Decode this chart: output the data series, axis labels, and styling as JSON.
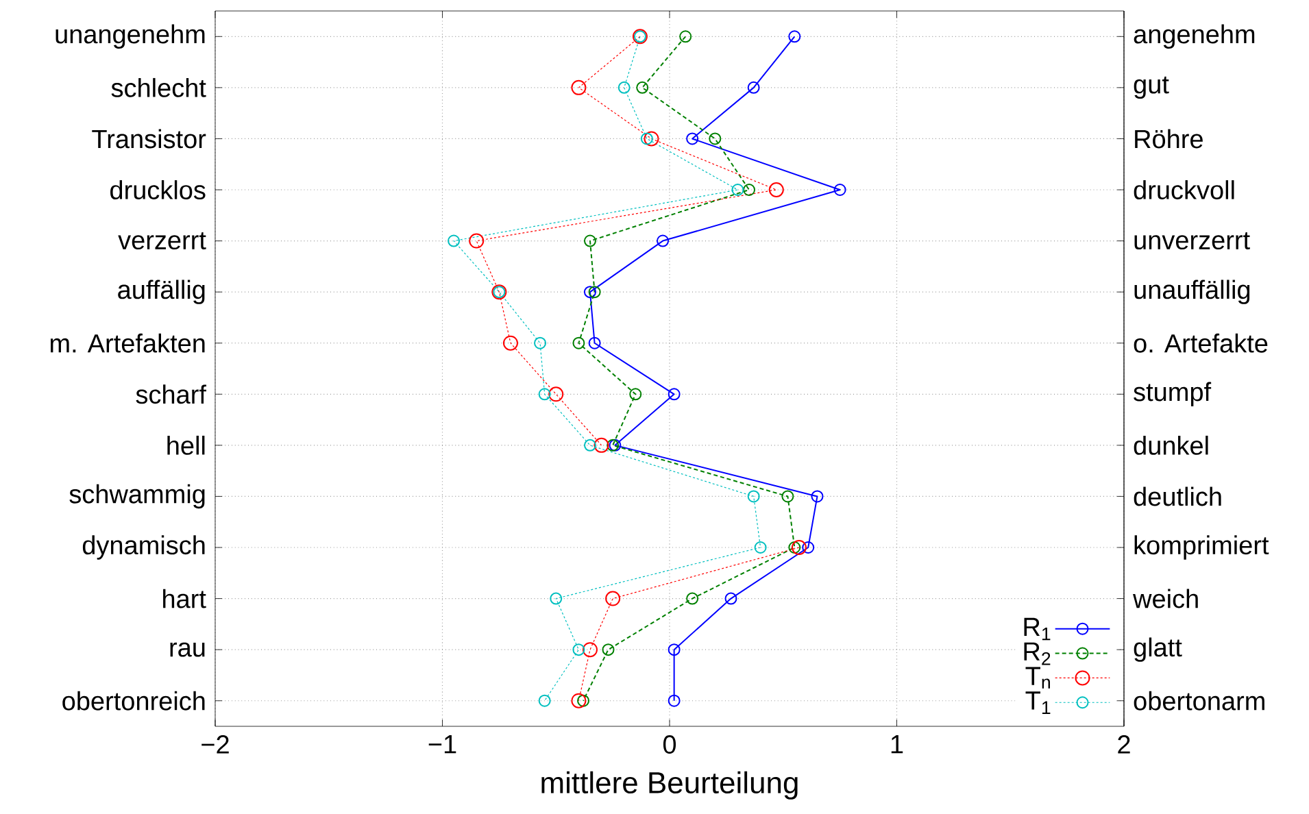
{
  "chart_data": {
    "type": "line",
    "orientation": "horizontal",
    "xlabel": "mittlere Beurteilung",
    "categories": [
      "unangenehm",
      "schlecht",
      "Transistor",
      "drucklos",
      "verzerrt",
      "auffällig",
      "m. Artefakten",
      "scharf",
      "hell",
      "schwammig",
      "dynamisch",
      "hart",
      "rau",
      "obertonreich"
    ],
    "y2_categories": [
      "angenehm",
      "gut",
      "Röhre",
      "druckvoll",
      "unverzerrt",
      "unauffällig",
      "o. Artefakte",
      "stumpf",
      "dunkel",
      "deutlich",
      "komprimiert",
      "weich",
      "glatt",
      "obertonarm"
    ],
    "xlim": [
      -2,
      2
    ],
    "xticks": [
      {
        "value": -2,
        "label": "−2"
      },
      {
        "value": -1,
        "label": "−1"
      },
      0,
      1,
      2
    ],
    "grid": true,
    "legend": "bottom right",
    "marker": "circle",
    "series": [
      {
        "name": "R$_{1}$",
        "color": "#0000ff",
        "line_style": "solid",
        "values": [
          0.55,
          0.37,
          0.1,
          0.75,
          -0.03,
          -0.35,
          -0.33,
          0.02,
          -0.24,
          0.65,
          0.61,
          0.27,
          0.02,
          0.02
        ]
      },
      {
        "name": "R$_{2}$",
        "color": "#008000",
        "line_style": "dashed",
        "values": [
          0.07,
          -0.12,
          0.2,
          0.35,
          -0.35,
          -0.33,
          -0.4,
          -0.15,
          -0.25,
          0.52,
          0.55,
          0.1,
          -0.27,
          -0.38
        ]
      },
      {
        "name": "T$_{n}$",
        "color": "#ff0000",
        "line_style": "dotted",
        "values": [
          -0.13,
          -0.4,
          -0.08,
          0.47,
          -0.85,
          -0.75,
          -0.7,
          -0.5,
          -0.3,
          null,
          0.57,
          -0.25,
          -0.35,
          -0.4
        ]
      },
      {
        "name": "T$_{1}$",
        "color": "#00bfbf",
        "line_style": "dotted",
        "values": [
          -0.13,
          -0.2,
          -0.1,
          0.3,
          -0.95,
          -0.75,
          -0.57,
          -0.55,
          -0.35,
          0.37,
          0.4,
          -0.5,
          -0.4,
          -0.55
        ]
      }
    ]
  }
}
